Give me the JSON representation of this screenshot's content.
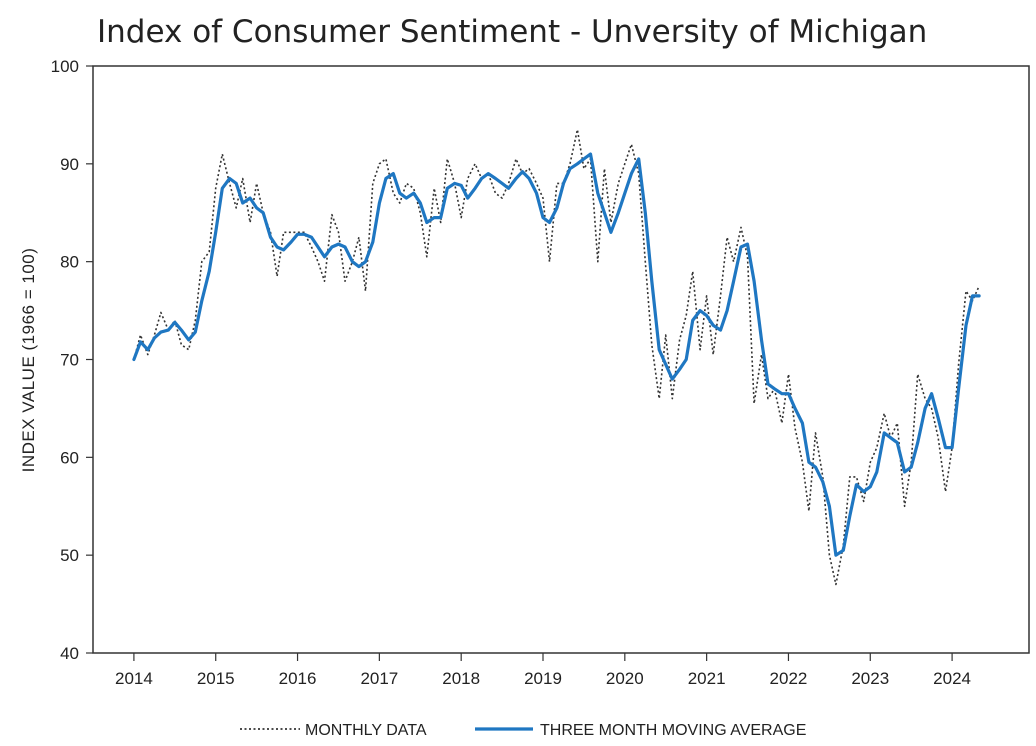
{
  "chart_data": {
    "type": "line",
    "title": "Index of Consumer Sentiment - Unversity of Michigan",
    "xlabel": "",
    "ylabel": "INDEX VALUE (1966 = 100)",
    "ylim": [
      40,
      100
    ],
    "yticks": [
      40,
      50,
      60,
      70,
      80,
      90,
      100
    ],
    "xlim": [
      2013.5,
      2024.94
    ],
    "xticks": [
      2014,
      2015,
      2016,
      2017,
      2018,
      2019,
      2020,
      2021,
      2022,
      2023,
      2024
    ],
    "grid": false,
    "legend_position": "bottom",
    "series": [
      {
        "name": "MONTHLY DATA",
        "style": "dotted",
        "color": "#333333",
        "points": [
          [
            2014.0,
            70
          ],
          [
            2014.08,
            72.5
          ],
          [
            2014.17,
            70.5
          ],
          [
            2014.25,
            72.5
          ],
          [
            2014.33,
            74.8
          ],
          [
            2014.42,
            73
          ],
          [
            2014.5,
            74
          ],
          [
            2014.58,
            71.5
          ],
          [
            2014.67,
            71
          ],
          [
            2014.75,
            74
          ],
          [
            2014.83,
            80
          ],
          [
            2014.92,
            81
          ],
          [
            2015.0,
            87.5
          ],
          [
            2015.08,
            91
          ],
          [
            2015.17,
            88
          ],
          [
            2015.25,
            85.5
          ],
          [
            2015.33,
            88.5
          ],
          [
            2015.42,
            84
          ],
          [
            2015.5,
            88
          ],
          [
            2015.58,
            85
          ],
          [
            2015.67,
            83
          ],
          [
            2015.75,
            78.5
          ],
          [
            2015.83,
            83
          ],
          [
            2015.92,
            83
          ],
          [
            2016.0,
            83
          ],
          [
            2016.08,
            83
          ],
          [
            2016.17,
            81.5
          ],
          [
            2016.25,
            80
          ],
          [
            2016.33,
            78
          ],
          [
            2016.42,
            84.8
          ],
          [
            2016.5,
            83
          ],
          [
            2016.58,
            78
          ],
          [
            2016.67,
            80
          ],
          [
            2016.75,
            82.5
          ],
          [
            2016.83,
            77
          ],
          [
            2016.92,
            88
          ],
          [
            2017.0,
            90
          ],
          [
            2017.08,
            90.5
          ],
          [
            2017.17,
            87
          ],
          [
            2017.25,
            86
          ],
          [
            2017.33,
            88
          ],
          [
            2017.42,
            87.5
          ],
          [
            2017.5,
            85
          ],
          [
            2017.58,
            80.5
          ],
          [
            2017.67,
            87.5
          ],
          [
            2017.75,
            84
          ],
          [
            2017.83,
            90.5
          ],
          [
            2017.92,
            88
          ],
          [
            2018.0,
            84.5
          ],
          [
            2018.08,
            88.5
          ],
          [
            2018.17,
            90
          ],
          [
            2018.25,
            88.5
          ],
          [
            2018.33,
            89
          ],
          [
            2018.42,
            87
          ],
          [
            2018.5,
            86.5
          ],
          [
            2018.58,
            88
          ],
          [
            2018.67,
            90.5
          ],
          [
            2018.75,
            89
          ],
          [
            2018.83,
            89.5
          ],
          [
            2018.92,
            88
          ],
          [
            2019.0,
            86.5
          ],
          [
            2019.08,
            80
          ],
          [
            2019.17,
            88
          ],
          [
            2019.25,
            88
          ],
          [
            2019.33,
            90
          ],
          [
            2019.42,
            93.5
          ],
          [
            2019.5,
            89.5
          ],
          [
            2019.58,
            90.5
          ],
          [
            2019.67,
            80
          ],
          [
            2019.75,
            89.5
          ],
          [
            2019.83,
            84
          ],
          [
            2019.92,
            88
          ],
          [
            2020.0,
            90
          ],
          [
            2020.08,
            92
          ],
          [
            2020.17,
            89
          ],
          [
            2020.25,
            80
          ],
          [
            2020.33,
            71.5
          ],
          [
            2020.42,
            66
          ],
          [
            2020.5,
            72.5
          ],
          [
            2020.58,
            66
          ],
          [
            2020.67,
            72
          ],
          [
            2020.75,
            74.5
          ],
          [
            2020.83,
            79
          ],
          [
            2020.92,
            71
          ],
          [
            2021.0,
            76.5
          ],
          [
            2021.08,
            70.5
          ],
          [
            2021.17,
            76.5
          ],
          [
            2021.25,
            82.5
          ],
          [
            2021.33,
            80
          ],
          [
            2021.42,
            83.5
          ],
          [
            2021.5,
            80.5
          ],
          [
            2021.58,
            65.5
          ],
          [
            2021.67,
            70.5
          ],
          [
            2021.75,
            66
          ],
          [
            2021.83,
            67
          ],
          [
            2021.92,
            63.5
          ],
          [
            2022.0,
            68.5
          ],
          [
            2022.08,
            63
          ],
          [
            2022.17,
            59.5
          ],
          [
            2022.25,
            54.5
          ],
          [
            2022.33,
            62.5
          ],
          [
            2022.42,
            58
          ],
          [
            2022.5,
            50
          ],
          [
            2022.58,
            47
          ],
          [
            2022.67,
            51
          ],
          [
            2022.75,
            58
          ],
          [
            2022.83,
            58
          ],
          [
            2022.92,
            55.5
          ],
          [
            2023.0,
            59.5
          ],
          [
            2023.08,
            61
          ],
          [
            2023.17,
            64.5
          ],
          [
            2023.25,
            62
          ],
          [
            2023.33,
            63.5
          ],
          [
            2023.42,
            55
          ],
          [
            2023.5,
            59.5
          ],
          [
            2023.58,
            68.5
          ],
          [
            2023.67,
            66
          ],
          [
            2023.75,
            65
          ],
          [
            2023.83,
            62
          ],
          [
            2023.92,
            56.5
          ],
          [
            2024.0,
            61
          ],
          [
            2024.08,
            69.5
          ],
          [
            2024.17,
            77
          ],
          [
            2024.25,
            76
          ],
          [
            2024.33,
            77.5
          ]
        ]
      },
      {
        "name": "THREE MONTH MOVING AVERAGE",
        "style": "solid",
        "color": "#1f77c2",
        "points": [
          [
            2014.0,
            70
          ],
          [
            2014.08,
            71.8
          ],
          [
            2014.17,
            71
          ],
          [
            2014.25,
            72.2
          ],
          [
            2014.33,
            72.8
          ],
          [
            2014.42,
            73
          ],
          [
            2014.5,
            73.8
          ],
          [
            2014.58,
            73
          ],
          [
            2014.67,
            72
          ],
          [
            2014.75,
            72.8
          ],
          [
            2014.83,
            76
          ],
          [
            2014.92,
            79
          ],
          [
            2015.0,
            83
          ],
          [
            2015.08,
            87.5
          ],
          [
            2015.17,
            88.5
          ],
          [
            2015.25,
            88
          ],
          [
            2015.33,
            86
          ],
          [
            2015.42,
            86.5
          ],
          [
            2015.5,
            85.5
          ],
          [
            2015.58,
            85
          ],
          [
            2015.67,
            82.5
          ],
          [
            2015.75,
            81.5
          ],
          [
            2015.83,
            81.2
          ],
          [
            2015.92,
            82
          ],
          [
            2016.0,
            82.8
          ],
          [
            2016.08,
            82.8
          ],
          [
            2016.17,
            82.5
          ],
          [
            2016.25,
            81.5
          ],
          [
            2016.33,
            80.5
          ],
          [
            2016.42,
            81.5
          ],
          [
            2016.5,
            81.8
          ],
          [
            2016.58,
            81.5
          ],
          [
            2016.67,
            80
          ],
          [
            2016.75,
            79.5
          ],
          [
            2016.83,
            80
          ],
          [
            2016.92,
            82
          ],
          [
            2017.0,
            86
          ],
          [
            2017.08,
            88.5
          ],
          [
            2017.17,
            89
          ],
          [
            2017.25,
            87
          ],
          [
            2017.33,
            86.5
          ],
          [
            2017.42,
            87
          ],
          [
            2017.5,
            86
          ],
          [
            2017.58,
            84
          ],
          [
            2017.67,
            84.5
          ],
          [
            2017.75,
            84.5
          ],
          [
            2017.83,
            87.5
          ],
          [
            2017.92,
            88
          ],
          [
            2018.0,
            87.8
          ],
          [
            2018.08,
            86.5
          ],
          [
            2018.17,
            87.5
          ],
          [
            2018.25,
            88.5
          ],
          [
            2018.33,
            89
          ],
          [
            2018.42,
            88.5
          ],
          [
            2018.5,
            88
          ],
          [
            2018.58,
            87.5
          ],
          [
            2018.67,
            88.5
          ],
          [
            2018.75,
            89.2
          ],
          [
            2018.83,
            88.5
          ],
          [
            2018.92,
            87
          ],
          [
            2019.0,
            84.5
          ],
          [
            2019.08,
            84
          ],
          [
            2019.17,
            85.5
          ],
          [
            2019.25,
            88
          ],
          [
            2019.33,
            89.5
          ],
          [
            2019.42,
            90
          ],
          [
            2019.5,
            90.5
          ],
          [
            2019.58,
            91
          ],
          [
            2019.67,
            87
          ],
          [
            2019.75,
            85
          ],
          [
            2019.83,
            83
          ],
          [
            2019.92,
            85
          ],
          [
            2020.0,
            87
          ],
          [
            2020.08,
            89
          ],
          [
            2020.17,
            90.5
          ],
          [
            2020.25,
            85
          ],
          [
            2020.33,
            78
          ],
          [
            2020.42,
            71
          ],
          [
            2020.5,
            69.5
          ],
          [
            2020.58,
            68
          ],
          [
            2020.67,
            69
          ],
          [
            2020.75,
            70
          ],
          [
            2020.83,
            74
          ],
          [
            2020.92,
            75
          ],
          [
            2021.0,
            74.5
          ],
          [
            2021.08,
            73.5
          ],
          [
            2021.17,
            73
          ],
          [
            2021.25,
            75
          ],
          [
            2021.33,
            78
          ],
          [
            2021.42,
            81.5
          ],
          [
            2021.5,
            81.8
          ],
          [
            2021.58,
            78
          ],
          [
            2021.67,
            72
          ],
          [
            2021.75,
            67.5
          ],
          [
            2021.83,
            67
          ],
          [
            2021.92,
            66.5
          ],
          [
            2022.0,
            66.5
          ],
          [
            2022.08,
            65
          ],
          [
            2022.17,
            63.5
          ],
          [
            2022.25,
            59.5
          ],
          [
            2022.33,
            59
          ],
          [
            2022.42,
            57.5
          ],
          [
            2022.5,
            55
          ],
          [
            2022.58,
            50
          ],
          [
            2022.67,
            50.5
          ],
          [
            2022.75,
            54
          ],
          [
            2022.83,
            57.2
          ],
          [
            2022.92,
            56.5
          ],
          [
            2023.0,
            57
          ],
          [
            2023.08,
            58.5
          ],
          [
            2023.17,
            62.5
          ],
          [
            2023.25,
            62
          ],
          [
            2023.33,
            61.5
          ],
          [
            2023.42,
            58.5
          ],
          [
            2023.5,
            59
          ],
          [
            2023.58,
            61.5
          ],
          [
            2023.67,
            65
          ],
          [
            2023.75,
            66.5
          ],
          [
            2023.83,
            64
          ],
          [
            2023.92,
            61
          ],
          [
            2024.0,
            61
          ],
          [
            2024.08,
            67
          ],
          [
            2024.17,
            73.5
          ],
          [
            2024.25,
            76.5
          ],
          [
            2024.33,
            76.5
          ]
        ]
      }
    ]
  }
}
